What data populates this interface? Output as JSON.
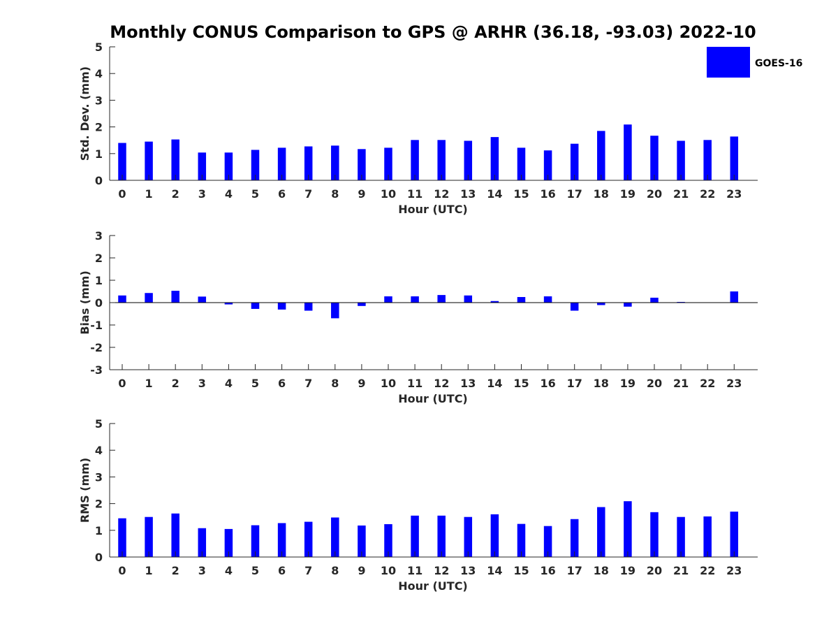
{
  "chart_title": "Monthly CONUS Comparison to GPS @ ARHR (36.18, -93.03) 2022-10",
  "legend": {
    "label": "GOES-16",
    "color": "#0000ff"
  },
  "bar_color": "#0000ff",
  "chart_data": [
    {
      "type": "bar",
      "title": "Monthly CONUS Comparison to GPS @ ARHR (36.18, -93.03) 2022-10",
      "xlabel": "Hour (UTC)",
      "ylabel": "Std. Dev. (mm)",
      "ylim": [
        0,
        5
      ],
      "yticks": [
        "0",
        "1",
        "2",
        "3",
        "4",
        "5"
      ],
      "categories": [
        "0",
        "1",
        "2",
        "3",
        "4",
        "5",
        "6",
        "7",
        "8",
        "9",
        "10",
        "11",
        "12",
        "13",
        "14",
        "15",
        "16",
        "17",
        "18",
        "19",
        "20",
        "21",
        "22",
        "23"
      ],
      "series": [
        {
          "name": "GOES-16",
          "values": [
            1.4,
            1.45,
            1.53,
            1.04,
            1.04,
            1.14,
            1.22,
            1.27,
            1.3,
            1.17,
            1.22,
            1.51,
            1.51,
            1.48,
            1.62,
            1.22,
            1.12,
            1.37,
            1.85,
            2.09,
            1.67,
            1.48,
            1.51,
            1.64
          ]
        }
      ],
      "legend": "top-right",
      "grid": false
    },
    {
      "type": "bar",
      "xlabel": "Hour (UTC)",
      "ylabel": "Bias (mm)",
      "ylim": [
        -3,
        3
      ],
      "yticks": [
        "-3",
        "-2",
        "-1",
        "0",
        "1",
        "2",
        "3"
      ],
      "categories": [
        "0",
        "1",
        "2",
        "3",
        "4",
        "5",
        "6",
        "7",
        "8",
        "9",
        "10",
        "11",
        "12",
        "13",
        "14",
        "15",
        "16",
        "17",
        "18",
        "19",
        "20",
        "21",
        "22",
        "23"
      ],
      "series": [
        {
          "name": "GOES-16",
          "values": [
            0.32,
            0.43,
            0.53,
            0.27,
            -0.08,
            -0.28,
            -0.31,
            -0.36,
            -0.7,
            -0.15,
            0.28,
            0.28,
            0.34,
            0.32,
            0.07,
            0.25,
            0.28,
            -0.36,
            -0.11,
            -0.18,
            0.22,
            0.03,
            0.0,
            0.5
          ]
        }
      ],
      "grid": false
    },
    {
      "type": "bar",
      "xlabel": "Hour (UTC)",
      "ylabel": "RMS (mm)",
      "ylim": [
        0,
        5
      ],
      "yticks": [
        "0",
        "1",
        "2",
        "3",
        "4",
        "5"
      ],
      "categories": [
        "0",
        "1",
        "2",
        "3",
        "4",
        "5",
        "6",
        "7",
        "8",
        "9",
        "10",
        "11",
        "12",
        "13",
        "14",
        "15",
        "16",
        "17",
        "18",
        "19",
        "20",
        "21",
        "22",
        "23"
      ],
      "series": [
        {
          "name": "GOES-16",
          "values": [
            1.45,
            1.5,
            1.63,
            1.08,
            1.05,
            1.19,
            1.27,
            1.32,
            1.48,
            1.18,
            1.23,
            1.55,
            1.55,
            1.5,
            1.6,
            1.24,
            1.16,
            1.42,
            1.87,
            2.09,
            1.68,
            1.5,
            1.52,
            1.7
          ]
        }
      ],
      "grid": false
    }
  ]
}
